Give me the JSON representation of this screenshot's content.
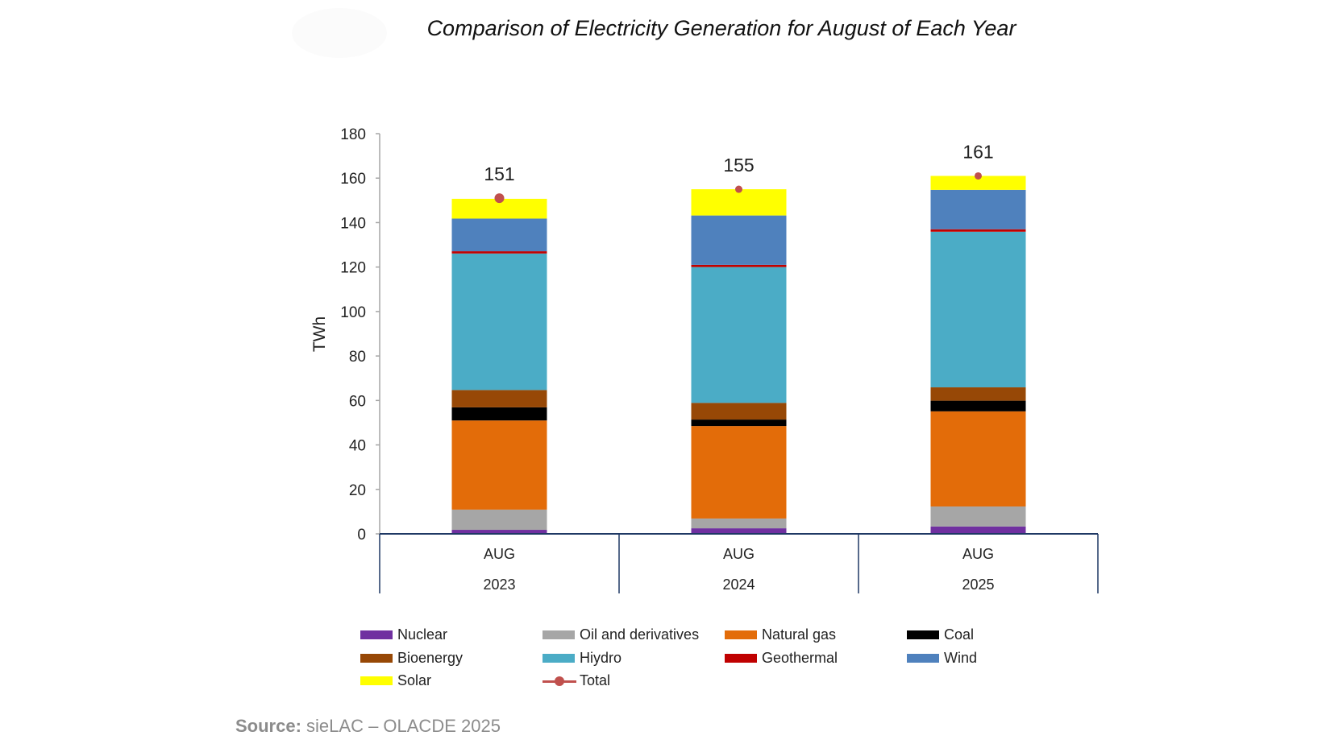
{
  "chart_data": {
    "type": "bar",
    "stacked": true,
    "title": "Comparison of Electricity Generation for August of Each Year",
    "xlabel": "",
    "ylabel": "TWh",
    "ylim": [
      0,
      180
    ],
    "yticks": [
      0,
      20,
      40,
      60,
      80,
      100,
      120,
      140,
      160,
      180
    ],
    "grid": false,
    "categories": [
      {
        "month": "AUG",
        "year": "2023"
      },
      {
        "month": "AUG",
        "year": "2024"
      },
      {
        "month": "AUG",
        "year": "2025"
      }
    ],
    "series": [
      {
        "name": "Nuclear",
        "color": "#7030a0",
        "values": [
          1.8,
          2.5,
          3.3
        ]
      },
      {
        "name": "Oil and derivatives",
        "color": "#a6a6a6",
        "values": [
          9.1,
          4.4,
          9.0
        ]
      },
      {
        "name": "Natural gas",
        "color": "#e36c09",
        "values": [
          40.1,
          41.6,
          42.8
        ]
      },
      {
        "name": "Coal",
        "color": "#000000",
        "values": [
          5.9,
          2.9,
          4.8
        ]
      },
      {
        "name": "Bioenergy",
        "color": "#974806",
        "values": [
          7.8,
          7.5,
          6.0
        ]
      },
      {
        "name": "Hiydro",
        "color": "#4bacc6",
        "values": [
          61.4,
          61.1,
          70.0
        ]
      },
      {
        "name": "Geothermal",
        "color": "#c00000",
        "values": [
          1.0,
          1.0,
          1.1
        ]
      },
      {
        "name": "Wind",
        "color": "#4f81bd",
        "values": [
          14.7,
          22.2,
          17.7
        ]
      },
      {
        "name": "Solar",
        "color": "#ffff00",
        "values": [
          8.9,
          11.8,
          6.3
        ]
      }
    ],
    "total": {
      "name": "Total",
      "color": "#c0504d",
      "values": [
        151,
        155,
        161
      ],
      "labels": [
        "151",
        "155",
        "161"
      ]
    },
    "legend": {
      "placement": "bottom",
      "entries": [
        {
          "label": "Nuclear",
          "color": "#7030a0",
          "kind": "swatch"
        },
        {
          "label": "Oil and derivatives",
          "color": "#a6a6a6",
          "kind": "swatch"
        },
        {
          "label": "Natural gas",
          "color": "#e36c09",
          "kind": "swatch"
        },
        {
          "label": "Coal",
          "color": "#000000",
          "kind": "swatch"
        },
        {
          "label": "Bioenergy",
          "color": "#974806",
          "kind": "swatch"
        },
        {
          "label": "Hiydro",
          "color": "#4bacc6",
          "kind": "swatch"
        },
        {
          "label": "Geothermal",
          "color": "#c00000",
          "kind": "swatch"
        },
        {
          "label": "Wind",
          "color": "#4f81bd",
          "kind": "swatch"
        },
        {
          "label": "Solar",
          "color": "#ffff00",
          "kind": "swatch"
        },
        {
          "label": "Total",
          "color": "#c0504d",
          "kind": "line-marker"
        }
      ]
    }
  },
  "source": {
    "prefix": "Source:",
    "text": " sieLAC – OLACDE 2025"
  }
}
